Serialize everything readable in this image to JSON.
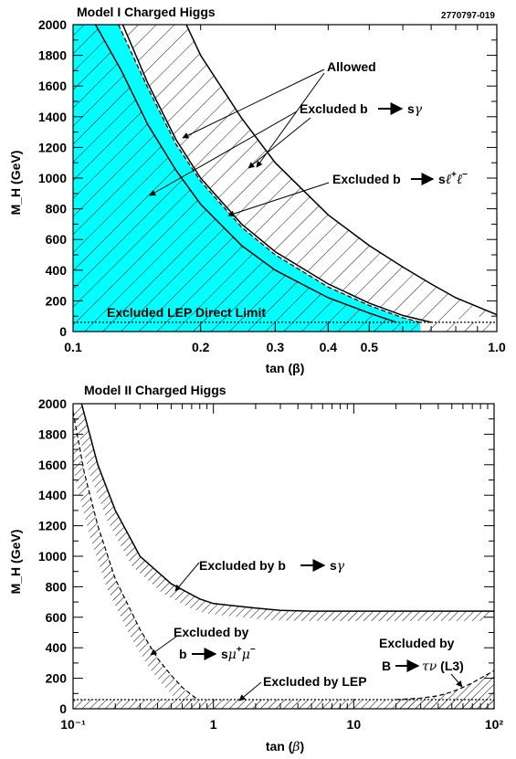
{
  "figure_id": "2770797-019",
  "colors": {
    "allowed": "#00ffff",
    "line": "#000000",
    "background": "#ffffff"
  },
  "chart_data": [
    {
      "type": "area",
      "title": "Model I Charged  Higgs",
      "xlabel": "tan (β)",
      "ylabel": "M_H (GeV)",
      "xscale": "log",
      "xlim": [
        0.1,
        1.0
      ],
      "ylim": [
        0,
        2000
      ],
      "xticks": [
        "0.1",
        "0.2",
        "0.3",
        "0.4",
        "0.5",
        "1.0"
      ],
      "yticks": [
        "0",
        "200",
        "400",
        "600",
        "800",
        "1000",
        "1200",
        "1400",
        "1600",
        "1800",
        "2000"
      ],
      "grid": false,
      "series": [
        {
          "name": "Excluded  b→sγ (lower bound)",
          "style": "solid",
          "x": [
            0.113,
            0.13,
            0.15,
            0.175,
            0.2,
            0.25,
            0.3,
            0.4,
            0.5,
            0.58
          ],
          "y": [
            2000,
            1700,
            1350,
            1050,
            830,
            560,
            400,
            220,
            120,
            60
          ]
        },
        {
          "name": "Allowed (upper edge)",
          "style": "dashed",
          "x": [
            0.128,
            0.15,
            0.175,
            0.2,
            0.25,
            0.3,
            0.4,
            0.5,
            0.6,
            0.66
          ],
          "y": [
            2000,
            1590,
            1220,
            980,
            680,
            500,
            290,
            170,
            90,
            60
          ]
        },
        {
          "name": "Excluded  b→sℓ+ℓ- (lower bound)",
          "style": "solid",
          "x": [
            0.131,
            0.15,
            0.175,
            0.2,
            0.25,
            0.3,
            0.4,
            0.5,
            0.6,
            0.7
          ],
          "y": [
            2000,
            1620,
            1250,
            1000,
            700,
            520,
            310,
            185,
            105,
            60
          ]
        },
        {
          "name": "Excluded  b→sℓ+ℓ- (upper bound)",
          "style": "solid",
          "x": [
            0.185,
            0.2,
            0.25,
            0.3,
            0.4,
            0.5,
            0.6,
            0.7,
            0.8,
            1.0
          ],
          "y": [
            2000,
            1800,
            1390,
            1100,
            760,
            560,
            420,
            310,
            220,
            110
          ]
        },
        {
          "name": "Excluded  LEP  Direct  Limit",
          "style": "dotted",
          "x": [
            0.1,
            1.0
          ],
          "y": [
            60,
            60
          ]
        }
      ],
      "annotations": [
        "Allowed",
        "Excluded  b→sγ",
        "Excluded  b→sℓ+ℓ-",
        "Excluded  LEP  Direct  Limit"
      ]
    },
    {
      "type": "line",
      "title": "Model II  Charged  Higgs",
      "xlabel": "tan (β)",
      "ylabel": "M_H (GeV)",
      "xscale": "log",
      "xlim": [
        0.1,
        100
      ],
      "ylim": [
        0,
        2000
      ],
      "xticks": [
        "10⁻¹",
        "1",
        "10",
        "10²"
      ],
      "yticks": [
        "0",
        "200",
        "400",
        "600",
        "800",
        "1000",
        "1200",
        "1400",
        "1600",
        "1800",
        "2000"
      ],
      "grid": false,
      "series": [
        {
          "name": "Excluded  by  b→sγ",
          "style": "solid",
          "x": [
            0.115,
            0.15,
            0.2,
            0.3,
            0.5,
            0.8,
            1,
            2,
            3,
            5,
            10,
            100
          ],
          "y": [
            2000,
            1600,
            1300,
            1000,
            820,
            720,
            690,
            660,
            645,
            640,
            640,
            640
          ]
        },
        {
          "name": "Excluded  by  b→sμ+μ-",
          "style": "dashed",
          "x": [
            0.1,
            0.12,
            0.15,
            0.2,
            0.3,
            0.4,
            0.5,
            0.6,
            0.7,
            0.78
          ],
          "y": [
            1950,
            1550,
            1200,
            850,
            520,
            330,
            220,
            140,
            90,
            60
          ]
        },
        {
          "name": "Excluded  by  LEP",
          "style": "dotted",
          "x": [
            0.1,
            100
          ],
          "y": [
            60,
            60
          ]
        },
        {
          "name": "Excluded  by  B→τν (L3)",
          "style": "dashed",
          "x": [
            20,
            30,
            40,
            50,
            60,
            70,
            80,
            100
          ],
          "y": [
            60,
            70,
            85,
            110,
            140,
            170,
            200,
            250
          ]
        }
      ],
      "annotations": [
        "Excluded  by  b→sγ",
        "Excluded  by  b→sμ+μ-",
        "Excluded  by  LEP",
        "Excluded  by  B→τν (L3)"
      ]
    }
  ]
}
